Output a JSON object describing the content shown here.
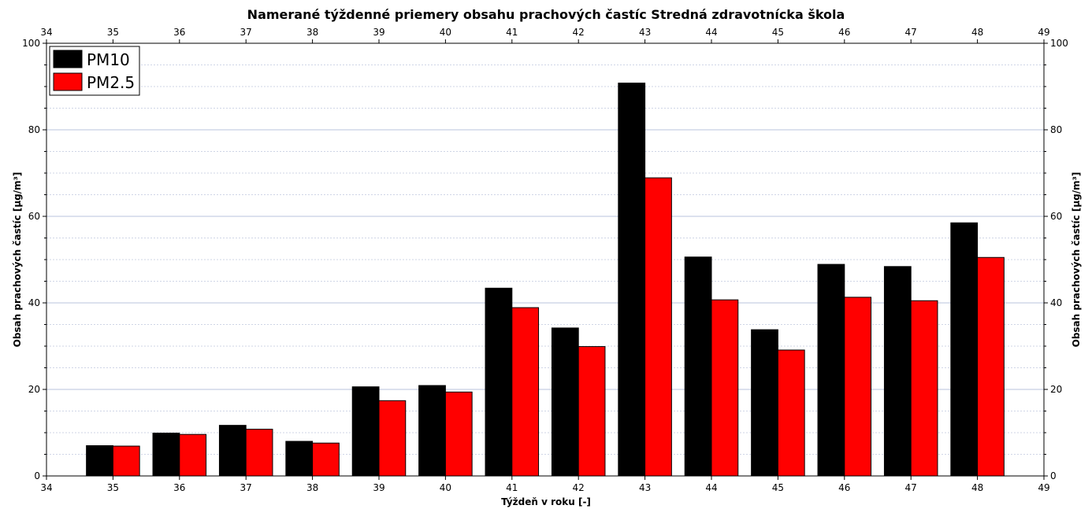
{
  "chart_data": {
    "type": "bar",
    "title": "Namerané týždenné priemery obsahu prachových častíc Stredná zdravotnícka škola",
    "xlabel": "Týždeň v roku [-]",
    "ylabel": "Obsah prachových častíc [μg/m³]",
    "ylabel_right": "Obsah prachových častíc [μg/m³]",
    "xlim": [
      34,
      49
    ],
    "ylim": [
      0,
      100
    ],
    "x_ticks": [
      34,
      35,
      36,
      37,
      38,
      39,
      40,
      41,
      42,
      43,
      44,
      45,
      46,
      47,
      48,
      49
    ],
    "y_ticks": [
      0,
      20,
      40,
      60,
      80,
      100
    ],
    "grid": true,
    "legend_position": "top-left",
    "categories": [
      35,
      36,
      37,
      38,
      39,
      40,
      41,
      42,
      43,
      44,
      45,
      46,
      47,
      48
    ],
    "series": [
      {
        "name": "PM10",
        "color": "#000000",
        "values": [
          7.0,
          9.9,
          11.7,
          8.0,
          20.6,
          20.9,
          43.4,
          34.2,
          90.8,
          50.6,
          33.8,
          48.9,
          48.4,
          58.5
        ]
      },
      {
        "name": "PM2.5",
        "color": "#ff0000",
        "values": [
          6.9,
          9.6,
          10.8,
          7.6,
          17.4,
          19.4,
          38.9,
          29.9,
          68.9,
          40.7,
          29.1,
          41.3,
          40.5,
          50.5
        ]
      }
    ]
  }
}
